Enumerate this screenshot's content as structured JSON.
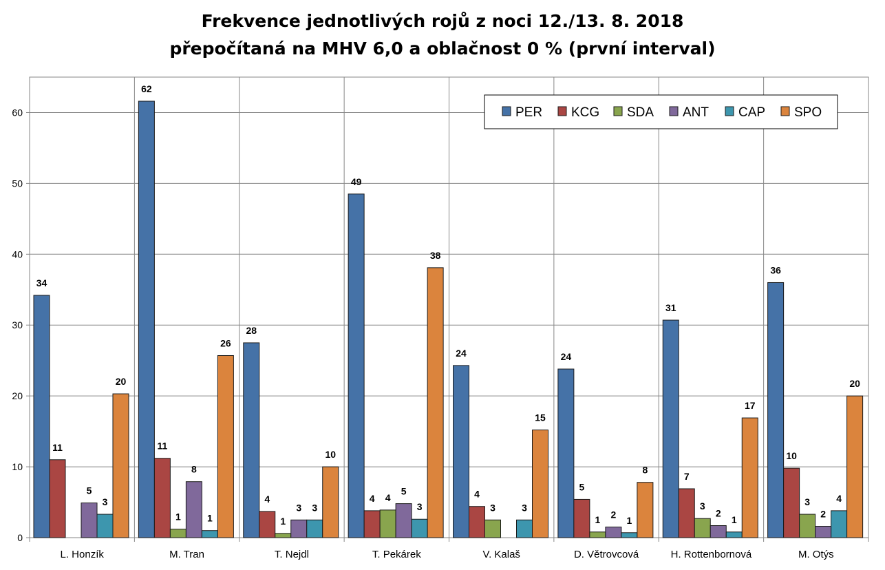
{
  "chart_data": {
    "type": "bar",
    "title": "Frekvence jednotlivých rojů z noci 12./13. 8. 2018",
    "subtitle": "přepočítaná na MHV 6,0 a oblačnost 0 % (první interval)",
    "xlabel": "",
    "ylabel": "",
    "ylim": [
      0,
      65
    ],
    "yticks": [
      0,
      10,
      20,
      30,
      40,
      50,
      60
    ],
    "grid": true,
    "legend_position": "top-right",
    "categories": [
      "L. Honzík",
      "M. Tran",
      "T. Nejdl",
      "T. Pekárek",
      "V. Kalaš",
      "D. Větrovcová",
      "H. Rottenbornová",
      "M. Otýs"
    ],
    "series": [
      {
        "name": "PER",
        "color": "#4572A7",
        "values": [
          34.2,
          61.6,
          27.5,
          48.5,
          24.3,
          23.8,
          30.7,
          36.0
        ],
        "labels": [
          "34",
          "62",
          "28",
          "49",
          "24",
          "24",
          "31",
          "36"
        ]
      },
      {
        "name": "KCG",
        "color": "#AA4643",
        "values": [
          11.0,
          11.2,
          3.7,
          3.8,
          4.4,
          5.4,
          6.9,
          9.8
        ],
        "labels": [
          "11",
          "11",
          "4",
          "4",
          "4",
          "5",
          "7",
          "10"
        ]
      },
      {
        "name": "SDA",
        "color": "#89A54E",
        "values": [
          0,
          1.2,
          0.6,
          3.9,
          2.5,
          0.8,
          2.7,
          3.3
        ],
        "labels": [
          "",
          "1",
          "1",
          "4",
          "3",
          "1",
          "3",
          "3"
        ]
      },
      {
        "name": "ANT",
        "color": "#80699B",
        "values": [
          4.9,
          7.9,
          2.5,
          4.8,
          0,
          1.5,
          1.7,
          1.6
        ],
        "labels": [
          "5",
          "8",
          "3",
          "5",
          "",
          "2",
          "2",
          "2"
        ]
      },
      {
        "name": "CAP",
        "color": "#3D96AE",
        "values": [
          3.3,
          1.0,
          2.5,
          2.6,
          2.5,
          0.7,
          0.8,
          3.8
        ],
        "labels": [
          "3",
          "1",
          "3",
          "3",
          "3",
          "1",
          "1",
          "4"
        ]
      },
      {
        "name": "SPO",
        "color": "#DB843D",
        "values": [
          20.3,
          25.7,
          10.0,
          38.1,
          15.2,
          7.8,
          16.9,
          20.0
        ],
        "labels": [
          "20",
          "26",
          "10",
          "38",
          "15",
          "8",
          "17",
          "20"
        ]
      }
    ]
  }
}
